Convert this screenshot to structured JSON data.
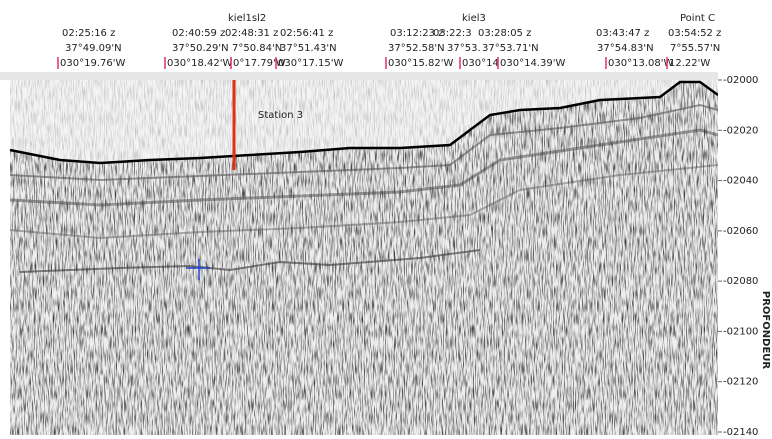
{
  "header": {
    "labels": [
      "kiel1sl2",
      "kiel3",
      "Point C"
    ],
    "markers": [
      {
        "time": "02:25:16 z",
        "lat": "37°49.09'N",
        "lon": "030°19.76'W"
      },
      {
        "time": "02:40:59 z",
        "lat": "37°50.29'N",
        "lon": "030°18.42'W"
      },
      {
        "time": "02:48:31 z",
        "lat": "7°50.84'N",
        "lon": "0°17.79'W"
      },
      {
        "time": "02:56:41 z",
        "lat": "37°51.43'N",
        "lon": "030°17.15'W"
      },
      {
        "time": "03:12:23 z",
        "lat": "37°52.58'N",
        "lon": "030°15.82'W"
      },
      {
        "time": "03:22:3",
        "lat": "37°53.",
        "lon": "030°14"
      },
      {
        "time": "03:28:05 z",
        "lat": "37°53.71'N",
        "lon": "030°14.39'W"
      },
      {
        "time": "03:43:47 z",
        "lat": "37°54.83'N",
        "lon": "030°13.08'W"
      },
      {
        "time": "03:54:52 z",
        "lat": "7°55.57'N",
        "lon": "12.22'W"
      }
    ]
  },
  "profile": {
    "station_label": "Station 3",
    "axis_title": "PROFONDEUR",
    "depth_ticks": [
      "-02000",
      "-02020",
      "-02040",
      "-02060",
      "-02080",
      "-02100",
      "-02120",
      "-02140"
    ]
  }
}
